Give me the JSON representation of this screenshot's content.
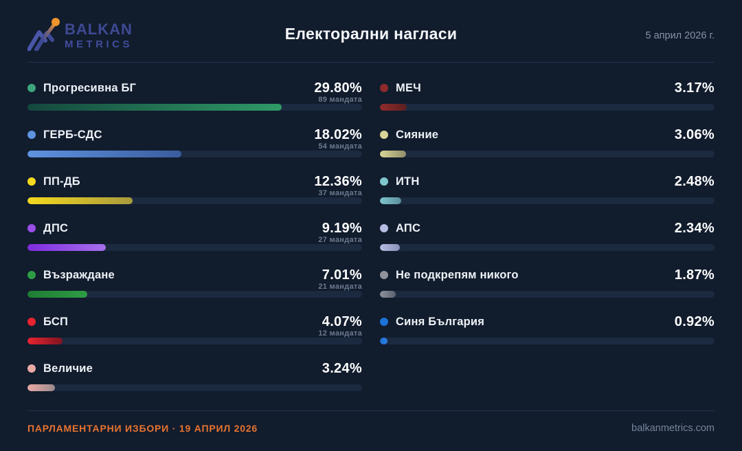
{
  "page": {
    "background": "#111c2d",
    "divider_color": "#263350"
  },
  "header": {
    "logo": {
      "line1": "BALKAN",
      "line2": "METRICS",
      "icon": "mountain-trend-icon",
      "text_color": "#3e4a94",
      "accent_color": "#f0952b"
    },
    "title": "Електорални нагласи",
    "date": "5 април 2026 г."
  },
  "footer": {
    "left": "ПАРЛАМЕНТАРНИ ИЗБОРИ · 19 АПРИЛ 2026",
    "right": "balkanmetrics.com",
    "accent": "#e87430"
  },
  "chart_data": {
    "type": "bar",
    "orientation": "horizontal",
    "title": "Електорални нагласи",
    "subtitle": "5 април 2026 г.",
    "unit": "%",
    "bar_scale_track_pct_per_unit": 2.55,
    "track_color": "#1c2a40",
    "categories": [
      "Прогресивна БГ",
      "ГЕРБ-СДС",
      "ПП-ДБ",
      "ДПС",
      "Възраждане",
      "БСП",
      "Величие",
      "МЕЧ",
      "Сияние",
      "ИТН",
      "АПС",
      "Не подкрепям никого",
      "Синя България"
    ],
    "values": [
      29.8,
      18.02,
      12.36,
      9.19,
      7.01,
      4.07,
      3.24,
      3.17,
      3.06,
      2.48,
      2.34,
      1.87,
      0.92
    ],
    "seats": [
      89,
      54,
      37,
      27,
      21,
      12,
      null,
      null,
      null,
      null,
      null,
      null,
      null
    ],
    "parties": [
      {
        "column": "left",
        "name": "Прогресивна БГ",
        "value": 29.8,
        "pct_label": "29.80%",
        "seats_label": "89 мандата",
        "dot": "#3da47b",
        "grad_from": "#14483e",
        "grad_to": "#2f9a66"
      },
      {
        "column": "left",
        "name": "ГЕРБ-СДС",
        "value": 18.02,
        "pct_label": "18.02%",
        "seats_label": "54 мандата",
        "dot": "#5e93e0",
        "grad_from": "#5e93e0",
        "grad_to": "#3a5c9e"
      },
      {
        "column": "left",
        "name": "ПП-ДБ",
        "value": 12.36,
        "pct_label": "12.36%",
        "seats_label": "37 мандата",
        "dot": "#f5d91e",
        "grad_from": "#f5d91e",
        "grad_to": "#a89a3c"
      },
      {
        "column": "left",
        "name": "ДПС",
        "value": 9.19,
        "pct_label": "9.19%",
        "seats_label": "27 мандата",
        "dot": "#9b4de8",
        "grad_from": "#7f2ce0",
        "grad_to": "#a770ec"
      },
      {
        "column": "left",
        "name": "Възраждане",
        "value": 7.01,
        "pct_label": "7.01%",
        "seats_label": "21 мандата",
        "dot": "#2d9c44",
        "grad_from": "#1f7c34",
        "grad_to": "#2d9c44"
      },
      {
        "column": "left",
        "name": "БСП",
        "value": 4.07,
        "pct_label": "4.07%",
        "seats_label": "12 мандата",
        "dot": "#e82430",
        "grad_from": "#e82430",
        "grad_to": "#7e1420"
      },
      {
        "column": "left",
        "name": "Величие",
        "value": 3.24,
        "pct_label": "3.24%",
        "seats_label": "",
        "dot": "#e9a9a4",
        "grad_from": "#e9a9a4",
        "grad_to": "#9c8a8c"
      },
      {
        "column": "right",
        "name": "МЕЧ",
        "value": 3.17,
        "pct_label": "3.17%",
        "seats_label": "",
        "dot": "#8f2b2b",
        "grad_from": "#8f2b2b",
        "grad_to": "#5c2020"
      },
      {
        "column": "right",
        "name": "Сияние",
        "value": 3.06,
        "pct_label": "3.06%",
        "seats_label": "",
        "dot": "#d9d596",
        "grad_from": "#d9d596",
        "grad_to": "#8f8d6a"
      },
      {
        "column": "right",
        "name": "ИТН",
        "value": 2.48,
        "pct_label": "2.48%",
        "seats_label": "",
        "dot": "#7fc6cc",
        "grad_from": "#7fc6cc",
        "grad_to": "#5a8d9c"
      },
      {
        "column": "right",
        "name": "АПС",
        "value": 2.34,
        "pct_label": "2.34%",
        "seats_label": "",
        "dot": "#b7bce2",
        "grad_from": "#b7bce2",
        "grad_to": "#8a90b8"
      },
      {
        "column": "right",
        "name": "Не подкрепям никого",
        "value": 1.87,
        "pct_label": "1.87%",
        "seats_label": "",
        "dot": "#90939a",
        "grad_from": "#90939a",
        "grad_to": "#5a6070"
      },
      {
        "column": "right",
        "name": "Синя България",
        "value": 0.92,
        "pct_label": "0.92%",
        "seats_label": "",
        "dot": "#1c72d8",
        "grad_from": "#1c72d8",
        "grad_to": "#2a7ddd"
      }
    ]
  }
}
